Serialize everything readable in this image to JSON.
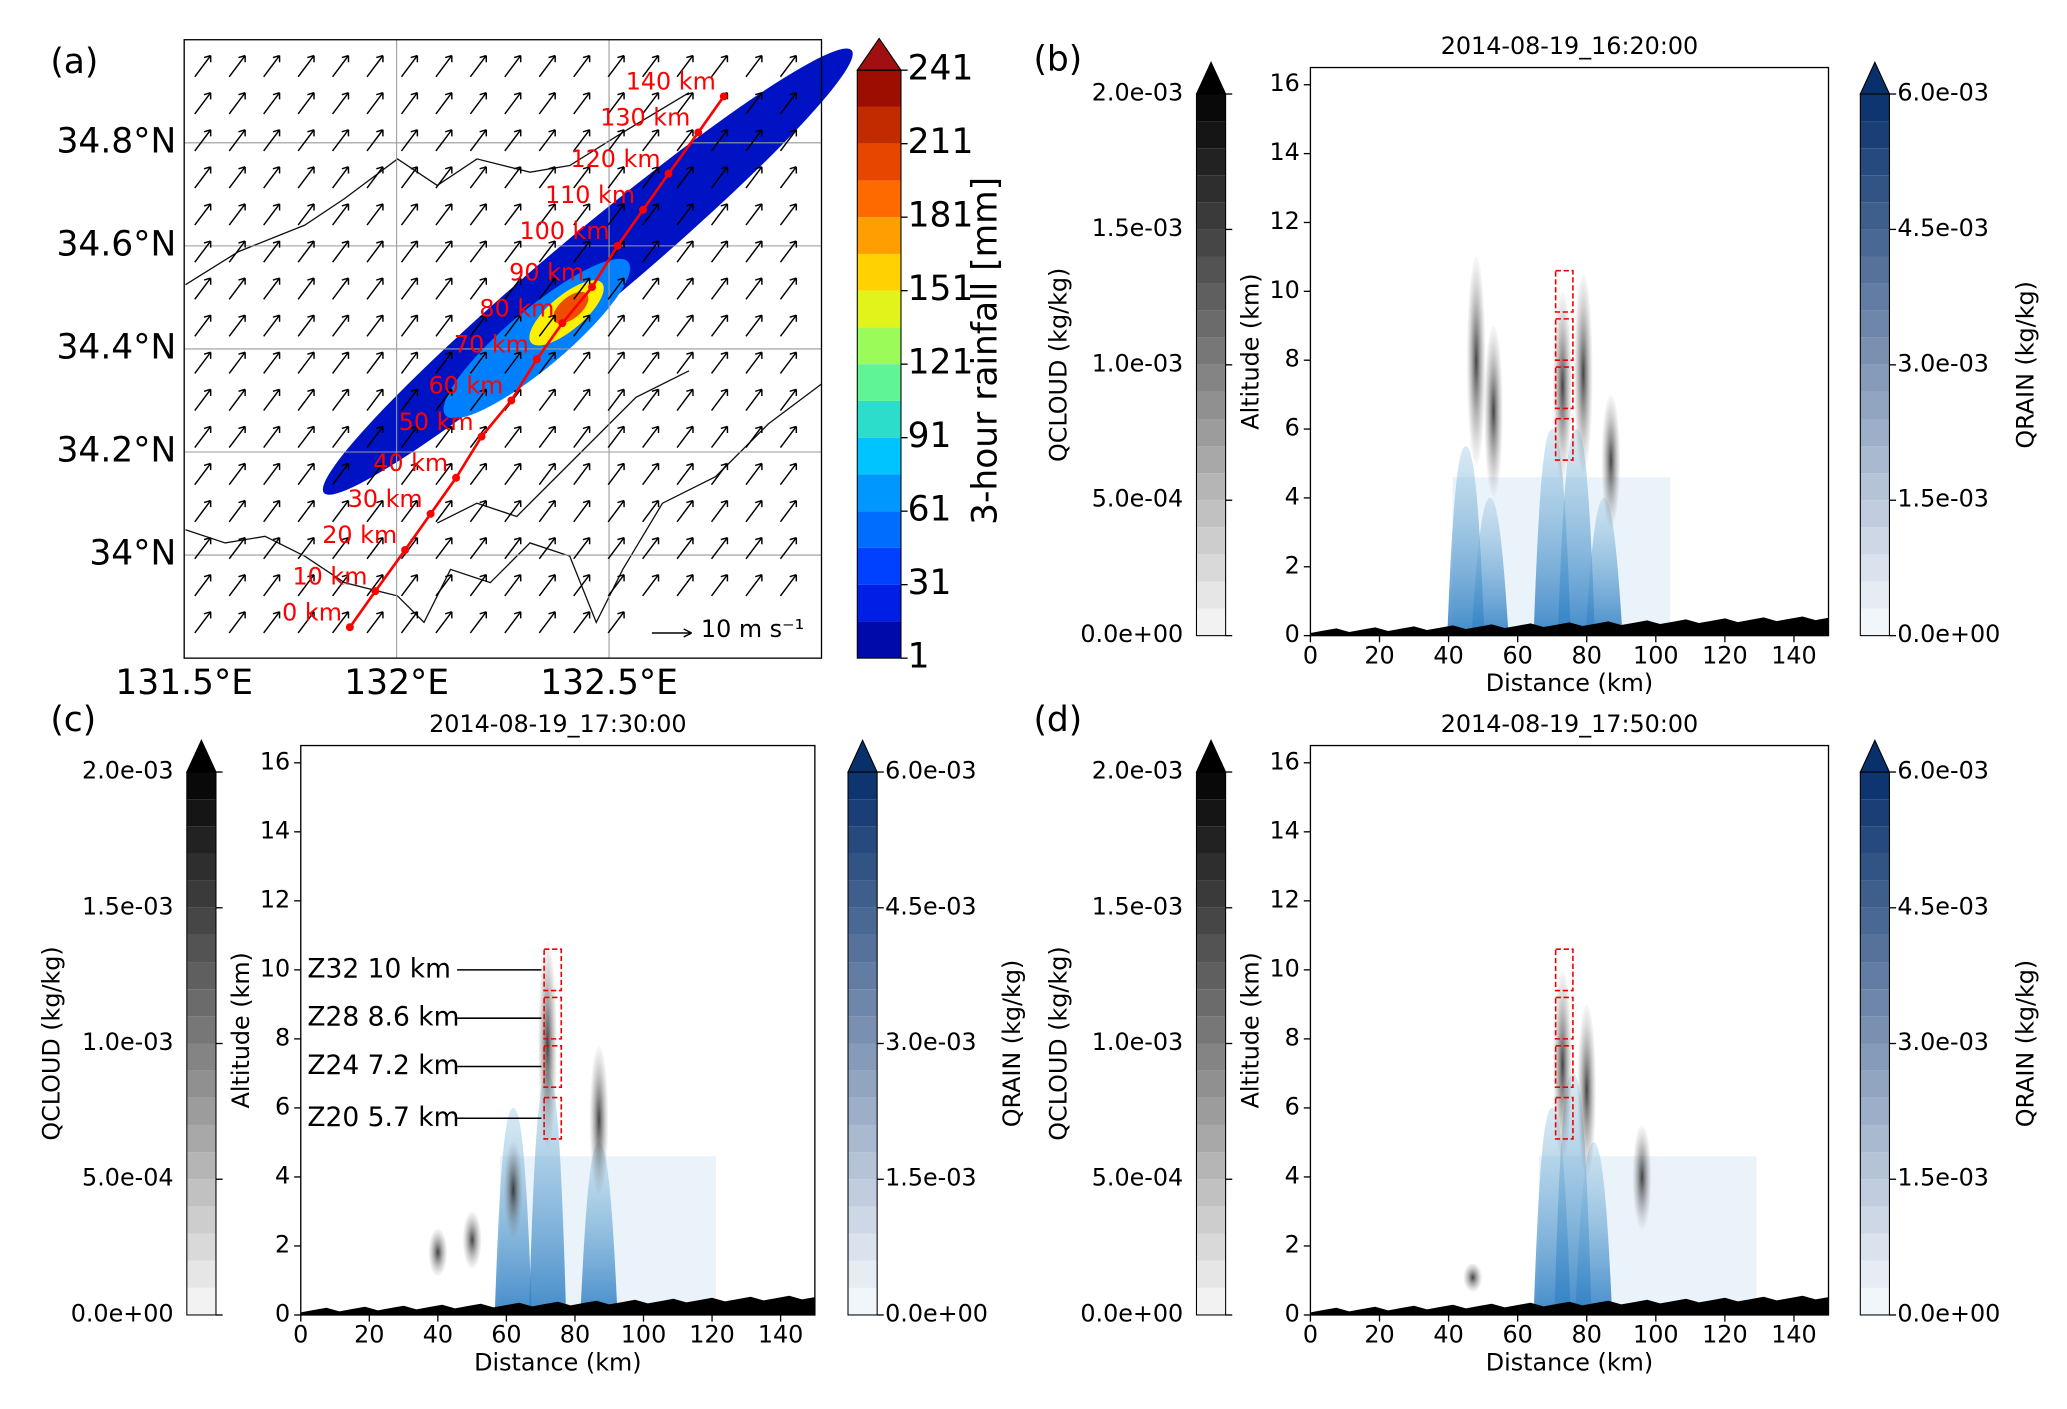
{
  "chart_data": [
    {
      "type": "map",
      "panel_label": "(a)",
      "xlim": [
        131.5,
        133.0
      ],
      "ylim": [
        33.8,
        35.0
      ],
      "xticks": [
        {
          "value": 131.5,
          "label": "131.5°E"
        },
        {
          "value": 132,
          "label": "132°E"
        },
        {
          "value": 132.5,
          "label": "132.5°E"
        }
      ],
      "yticks": [
        {
          "value": 34,
          "label": "34°N"
        },
        {
          "value": 34.2,
          "label": "34.2°N"
        },
        {
          "value": 34.4,
          "label": "34.4°N"
        },
        {
          "value": 34.6,
          "label": "34.6°N"
        },
        {
          "value": 34.8,
          "label": "34.8°N"
        }
      ],
      "grid": true,
      "colorbar_label": "3-hour rainfall [mm]",
      "clim": [
        1,
        241
      ],
      "cticks": [
        1,
        31,
        61,
        91,
        121,
        151,
        181,
        211,
        241
      ],
      "rain_blobs": {
        "lon": [
          132.45,
          132.33,
          132.4,
          132.41
        ],
        "lat": [
          34.55,
          34.42,
          34.47,
          34.48
        ],
        "value": [
          15,
          60,
          150,
          200
        ]
      },
      "track": {
        "color": "#ff0000",
        "lon": [
          131.89,
          131.95,
          132.02,
          132.08,
          132.14,
          132.2,
          132.27,
          132.33,
          132.39,
          132.46,
          132.52,
          132.58,
          132.64,
          132.71,
          132.77
        ],
        "lat": [
          33.86,
          33.93,
          34.01,
          34.08,
          34.15,
          34.23,
          34.3,
          34.38,
          34.45,
          34.52,
          34.6,
          34.67,
          34.74,
          34.82,
          34.89
        ],
        "labels": [
          "0 km",
          "10 km",
          "20 km",
          "30 km",
          "40 km",
          "50 km",
          "60 km",
          "70 km",
          "80 km",
          "90 km",
          "100 km",
          "110 km",
          "120 km",
          "130 km",
          "140 km"
        ]
      },
      "wind_reference": "10 m s⁻¹"
    },
    {
      "type": "section",
      "panel_label": "(b)",
      "title": "2014-08-19_16:20:00",
      "xlabel": "Distance (km)",
      "ylabel": "Altitude (km)",
      "xlim": [
        0,
        150
      ],
      "ylim": [
        0,
        16.5
      ],
      "xticks": [
        0,
        20,
        40,
        60,
        80,
        100,
        120,
        140
      ],
      "yticks": [
        0,
        2,
        4,
        6,
        8,
        10,
        12,
        14,
        16
      ],
      "qcloud_label": "QCLOUD (kg/kg)",
      "qcloud_lim": [
        0,
        0.002
      ],
      "qcloud_ticks": [
        {
          "value": 0,
          "label": "0.0e+00"
        },
        {
          "value": 0.0005,
          "label": "5.0e-04"
        },
        {
          "value": 0.001,
          "label": "1.0e-03"
        },
        {
          "value": 0.0015,
          "label": "1.5e-03"
        },
        {
          "value": 0.002,
          "label": "2.0e-03"
        }
      ],
      "qrain_label": "QRAIN (kg/kg)",
      "qrain_lim": [
        0,
        0.006
      ],
      "qrain_ticks": [
        {
          "value": 0,
          "label": "0.0e+00"
        },
        {
          "value": 0.0015,
          "label": "1.5e-03"
        },
        {
          "value": 0.003,
          "label": "3.0e-03"
        },
        {
          "value": 0.0045,
          "label": "4.5e-03"
        },
        {
          "value": 0.006,
          "label": "6.0e-03"
        }
      ],
      "qrain_cells": {
        "x": [
          45,
          52,
          70,
          77,
          85
        ],
        "top": [
          5.5,
          4,
          6,
          6,
          4
        ]
      },
      "qcloud_cells": {
        "x": [
          48,
          53,
          73,
          79,
          87
        ],
        "top": [
          11,
          9,
          10,
          10.5,
          7
        ]
      },
      "box_x": [
        71,
        76
      ],
      "box_levels": [
        5.7,
        7.2,
        8.6,
        10
      ]
    },
    {
      "type": "section",
      "panel_label": "(c)",
      "title": "2014-08-19_17:30:00",
      "xlabel": "Distance (km)",
      "ylabel": "Altitude (km)",
      "xlim": [
        0,
        150
      ],
      "ylim": [
        0,
        16.5
      ],
      "xticks": [
        0,
        20,
        40,
        60,
        80,
        100,
        120,
        140
      ],
      "yticks": [
        0,
        2,
        4,
        6,
        8,
        10,
        12,
        14,
        16
      ],
      "qcloud_label": "QCLOUD (kg/kg)",
      "qcloud_lim": [
        0,
        0.002
      ],
      "qcloud_ticks": [
        {
          "value": 0,
          "label": "0.0e+00"
        },
        {
          "value": 0.0005,
          "label": "5.0e-04"
        },
        {
          "value": 0.001,
          "label": "1.0e-03"
        },
        {
          "value": 0.0015,
          "label": "1.5e-03"
        },
        {
          "value": 0.002,
          "label": "2.0e-03"
        }
      ],
      "qrain_label": "QRAIN (kg/kg)",
      "qrain_lim": [
        0,
        0.006
      ],
      "qrain_ticks": [
        {
          "value": 0,
          "label": "0.0e+00"
        },
        {
          "value": 0.0015,
          "label": "1.5e-03"
        },
        {
          "value": 0.003,
          "label": "3.0e-03"
        },
        {
          "value": 0.0045,
          "label": "4.5e-03"
        },
        {
          "value": 0.006,
          "label": "6.0e-03"
        }
      ],
      "qrain_cells": {
        "x": [
          62,
          72,
          87
        ],
        "top": [
          6,
          7,
          5
        ]
      },
      "qcloud_cells": {
        "x": [
          40,
          50,
          62,
          72,
          87
        ],
        "top": [
          2.5,
          3,
          5,
          10.8,
          7.8
        ]
      },
      "box_x": [
        71,
        76
      ],
      "box_levels": [
        5.7,
        7.2,
        8.6,
        10
      ],
      "annotations": [
        {
          "text": "Z32 10 km",
          "y": 10
        },
        {
          "text": "Z28 8.6 km",
          "y": 8.6
        },
        {
          "text": "Z24 7.2 km",
          "y": 7.2
        },
        {
          "text": "Z20 5.7 km",
          "y": 5.7
        }
      ]
    },
    {
      "type": "section",
      "panel_label": "(d)",
      "title": "2014-08-19_17:50:00",
      "xlabel": "Distance (km)",
      "ylabel": "Altitude (km)",
      "xlim": [
        0,
        150
      ],
      "ylim": [
        0,
        16.5
      ],
      "xticks": [
        0,
        20,
        40,
        60,
        80,
        100,
        120,
        140
      ],
      "yticks": [
        0,
        2,
        4,
        6,
        8,
        10,
        12,
        14,
        16
      ],
      "qcloud_label": "QCLOUD (kg/kg)",
      "qcloud_lim": [
        0,
        0.002
      ],
      "qcloud_ticks": [
        {
          "value": 0,
          "label": "0.0e+00"
        },
        {
          "value": 0.0005,
          "label": "5.0e-04"
        },
        {
          "value": 0.001,
          "label": "1.0e-03"
        },
        {
          "value": 0.0015,
          "label": "1.5e-03"
        },
        {
          "value": 0.002,
          "label": "2.0e-03"
        }
      ],
      "qrain_label": "QRAIN (kg/kg)",
      "qrain_lim": [
        0,
        0.006
      ],
      "qrain_ticks": [
        {
          "value": 0,
          "label": "0.0e+00"
        },
        {
          "value": 0.0015,
          "label": "1.5e-03"
        },
        {
          "value": 0.003,
          "label": "3.0e-03"
        },
        {
          "value": 0.0045,
          "label": "4.5e-03"
        },
        {
          "value": 0.006,
          "label": "6.0e-03"
        }
      ],
      "qrain_cells": {
        "x": [
          70,
          76,
          82
        ],
        "top": [
          6,
          7,
          5
        ]
      },
      "qcloud_cells": {
        "x": [
          47,
          73,
          80,
          96
        ],
        "top": [
          1.5,
          10,
          9,
          5.5
        ]
      },
      "box_x": [
        71,
        76
      ],
      "box_levels": [
        5.7,
        7.2,
        8.6,
        10
      ]
    }
  ]
}
